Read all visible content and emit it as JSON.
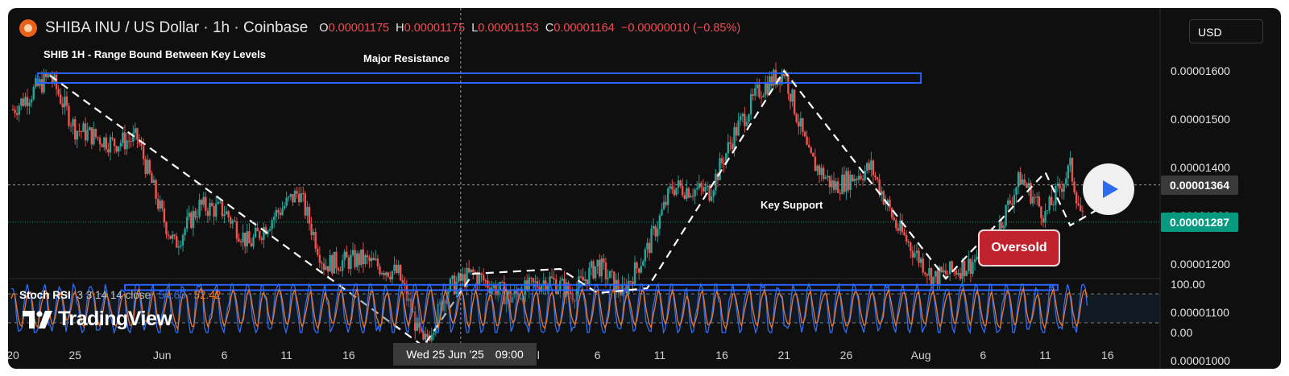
{
  "header": {
    "symbol": "SHIBA INU / US Dollar · 1h · Coinbase",
    "o_label": "O",
    "o_value": "0.00001175",
    "h_label": "H",
    "h_value": "0.00001175",
    "l_label": "L",
    "l_value": "0.00001153",
    "c_label": "C",
    "c_value": "0.00001164",
    "change": "−0.00000010 (−0.85%)",
    "currency": "USD"
  },
  "annotations": {
    "panel_title": "SHIB 1H - Range Bound Between Key Levels",
    "resistance": "Major Resistance",
    "support": "Key Support",
    "oversold": "Oversold"
  },
  "indicator": {
    "name": "Stoch RSI",
    "params": "3 3 14 14 close",
    "k_value": "54.63",
    "d_value": "52.42",
    "scale_top": "100.00",
    "scale_bottom": "0.00"
  },
  "branding": {
    "logo_text": "TradingView"
  },
  "crosshair": {
    "date_label": "Wed 25 Jun '25",
    "time_label": "09:00"
  },
  "price_badges": {
    "crosshair_price": "0.00001364",
    "last_price": "0.00001287"
  },
  "colors": {
    "background": "#0f0f0f",
    "up": "#26a69a",
    "down": "#ef5350",
    "box": "#2962ff",
    "stoch_k": "#2f6ef0",
    "stoch_d": "#e9762b",
    "last_price_badge": "#089981",
    "crosshair_badge": "#3a3a3a"
  },
  "icons": [
    "shib-coin-icon",
    "play-icon",
    "tradingview-logo-icon"
  ],
  "chart_data": {
    "type": "candlestick",
    "interval": "1h",
    "y_axis": {
      "ticks": [
        "0.00001600",
        "0.00001500",
        "0.00001400",
        "0.00001300",
        "0.00001200",
        "0.00001100",
        "0.00001000"
      ],
      "tick_values": [
        1.6e-05,
        1.5e-05,
        1.4e-05,
        1.3e-05,
        1.2e-05,
        1.1e-05,
        1e-05
      ]
    },
    "x_axis": {
      "ticks": [
        "20",
        "25",
        "Jun",
        "6",
        "11",
        "16",
        "ul",
        "6",
        "11",
        "16",
        "21",
        "26",
        "Aug",
        "6",
        "11",
        "16"
      ],
      "tick_dates": [
        "2025-05-20",
        "2025-05-25",
        "2025-06-01",
        "2025-06-06",
        "2025-06-11",
        "2025-06-16",
        "2025-07-01",
        "2025-07-06",
        "2025-07-11",
        "2025-07-16",
        "2025-07-21",
        "2025-07-26",
        "2025-08-01",
        "2025-08-06",
        "2025-08-11",
        "2025-08-16"
      ]
    },
    "price_path": [
      {
        "date": "2025-05-20",
        "price": 1.52e-05
      },
      {
        "date": "2025-05-23",
        "price": 1.59e-05
      },
      {
        "date": "2025-05-25",
        "price": 1.48e-05
      },
      {
        "date": "2025-05-28",
        "price": 1.45e-05
      },
      {
        "date": "2025-05-30",
        "price": 1.46e-05
      },
      {
        "date": "2025-06-01",
        "price": 1.3e-05
      },
      {
        "date": "2025-06-02",
        "price": 1.24e-05
      },
      {
        "date": "2025-06-04",
        "price": 1.32e-05
      },
      {
        "date": "2025-06-06",
        "price": 1.31e-05
      },
      {
        "date": "2025-06-08",
        "price": 1.24e-05
      },
      {
        "date": "2025-06-10",
        "price": 1.3e-05
      },
      {
        "date": "2025-06-12",
        "price": 1.35e-05
      },
      {
        "date": "2025-06-14",
        "price": 1.2e-05
      },
      {
        "date": "2025-06-17",
        "price": 1.21e-05
      },
      {
        "date": "2025-06-20",
        "price": 1.18e-05
      },
      {
        "date": "2025-06-22",
        "price": 1.03e-05
      },
      {
        "date": "2025-06-24",
        "price": 1.15e-05
      },
      {
        "date": "2025-06-26",
        "price": 1.18e-05
      },
      {
        "date": "2025-06-29",
        "price": 1.13e-05
      },
      {
        "date": "2025-07-02",
        "price": 1.17e-05
      },
      {
        "date": "2025-07-04",
        "price": 1.14e-05
      },
      {
        "date": "2025-07-06",
        "price": 1.2e-05
      },
      {
        "date": "2025-07-08",
        "price": 1.14e-05
      },
      {
        "date": "2025-07-10",
        "price": 1.23e-05
      },
      {
        "date": "2025-07-12",
        "price": 1.36e-05
      },
      {
        "date": "2025-07-15",
        "price": 1.35e-05
      },
      {
        "date": "2025-07-17",
        "price": 1.47e-05
      },
      {
        "date": "2025-07-19",
        "price": 1.56e-05
      },
      {
        "date": "2025-07-21",
        "price": 1.6e-05
      },
      {
        "date": "2025-07-23",
        "price": 1.42e-05
      },
      {
        "date": "2025-07-25",
        "price": 1.36e-05
      },
      {
        "date": "2025-07-28",
        "price": 1.4e-05
      },
      {
        "date": "2025-07-30",
        "price": 1.28e-05
      },
      {
        "date": "2025-08-02",
        "price": 1.17e-05
      },
      {
        "date": "2025-08-05",
        "price": 1.2e-05
      },
      {
        "date": "2025-08-07",
        "price": 1.26e-05
      },
      {
        "date": "2025-08-09",
        "price": 1.38e-05
      },
      {
        "date": "2025-08-11",
        "price": 1.3e-05
      },
      {
        "date": "2025-08-13",
        "price": 1.4e-05
      },
      {
        "date": "2025-08-14",
        "price": 1.29e-05
      }
    ],
    "resistance_zone": {
      "from_date": "2025-05-22",
      "to_date": "2025-08-01",
      "low": 1.575e-05,
      "high": 1.595e-05
    },
    "support_zone": {
      "from_date": "2025-05-29",
      "to_date": "2025-08-12",
      "low": 1.146e-05,
      "high": 1.157e-05
    },
    "trend_path": [
      {
        "date": "2025-05-23",
        "price": 1.59e-05
      },
      {
        "date": "2025-06-22",
        "price": 1.03e-05
      },
      {
        "date": "2025-06-26",
        "price": 1.18e-05
      },
      {
        "date": "2025-07-03",
        "price": 1.19e-05
      },
      {
        "date": "2025-07-06",
        "price": 1.14e-05
      },
      {
        "date": "2025-07-10",
        "price": 1.15e-05
      },
      {
        "date": "2025-07-21",
        "price": 1.6e-05
      },
      {
        "date": "2025-08-03",
        "price": 1.17e-05
      },
      {
        "date": "2025-08-11",
        "price": 1.39e-05
      },
      {
        "date": "2025-08-13",
        "price": 1.28e-05
      },
      {
        "date": "2025-08-15",
        "price": 1.31e-05
      }
    ],
    "crosshair": {
      "date": "2025-06-25",
      "price": 1.364e-05
    },
    "last_price": 1.287e-05,
    "stoch_rsi": {
      "range": [
        0,
        100
      ],
      "upper_band": 80,
      "lower_band": 20,
      "k_last": 54.63,
      "d_last": 52.42
    },
    "grid": false
  }
}
